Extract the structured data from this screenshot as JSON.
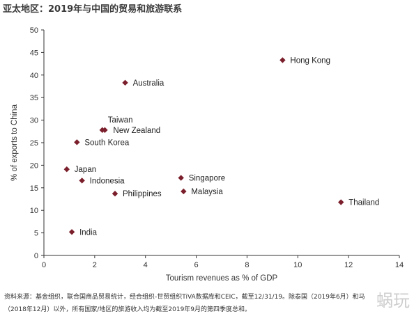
{
  "title": "亚太地区：2019年与中国的贸易和旅游联系",
  "chart_data": {
    "type": "scatter",
    "xlabel": "Tourism revenues as % of GDP",
    "ylabel": "% of exports to China",
    "xlim": [
      0,
      14
    ],
    "ylim": [
      0,
      50
    ],
    "x_ticks": [
      0,
      2,
      4,
      6,
      8,
      10,
      12,
      14
    ],
    "y_ticks": [
      0,
      5,
      10,
      15,
      20,
      25,
      30,
      35,
      40,
      45,
      50
    ],
    "grid": false,
    "marker_color": "#7a1f2b",
    "points": [
      {
        "label": "Hong Kong",
        "x": 9.4,
        "y": 43.3
      },
      {
        "label": "Australia",
        "x": 3.2,
        "y": 38.3
      },
      {
        "label": "Taiwan",
        "x": 2.3,
        "y": 27.8
      },
      {
        "label": "New Zealand",
        "x": 2.4,
        "y": 27.8
      },
      {
        "label": "South Korea",
        "x": 1.3,
        "y": 25.1
      },
      {
        "label": "Japan",
        "x": 0.9,
        "y": 19.1
      },
      {
        "label": "Indonesia",
        "x": 1.5,
        "y": 16.6
      },
      {
        "label": "Philippines",
        "x": 2.8,
        "y": 13.7
      },
      {
        "label": "Singapore",
        "x": 5.4,
        "y": 17.2
      },
      {
        "label": "Malaysia",
        "x": 5.5,
        "y": 14.2
      },
      {
        "label": "Thailand",
        "x": 11.7,
        "y": 11.8
      },
      {
        "label": "India",
        "x": 1.1,
        "y": 5.2
      }
    ]
  },
  "footnote": {
    "line1": "资料来源：基金组织，联合国商品贸易统计，经合组织-世贸组织TiVA数据库和CEIC，截至12/31/19。除泰国（2019年6月）和马",
    "line2": "（2018年12月）以外，所有国家/地区的旅游收入均为截至2019年9月的第四季度总和。"
  },
  "watermark": "蜗玩"
}
